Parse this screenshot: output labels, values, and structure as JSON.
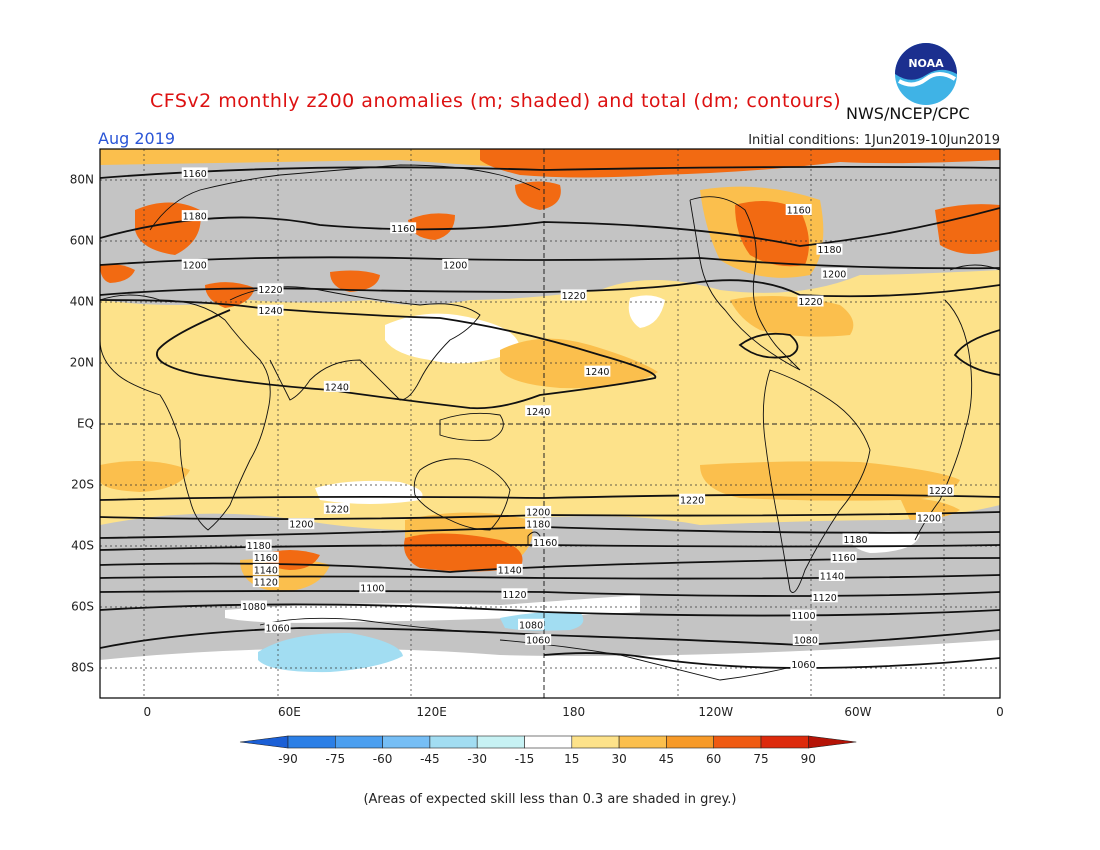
{
  "header": {
    "title": "CFSv2 monthly z200 anomalies (m; shaded) and total (dm; contours)",
    "month": "Aug 2019",
    "initial_conditions": "Initial conditions: 1Jun2019-10Jun2019",
    "agency": "NWS/NCEP/CPC",
    "logo_text": "NOAA"
  },
  "map": {
    "lat_labels": [
      "80N",
      "60N",
      "40N",
      "20N",
      "EQ",
      "20S",
      "40S",
      "60S",
      "80S"
    ],
    "lon_labels": [
      "0",
      "60E",
      "120E",
      "180",
      "120W",
      "60W",
      "0"
    ],
    "contour_labels": [
      {
        "text": "1160",
        "lon": 20,
        "lat": 82
      },
      {
        "text": "1180",
        "lon": 20,
        "lat": 68
      },
      {
        "text": "1160",
        "lon": 108,
        "lat": 64
      },
      {
        "text": "1160",
        "lon": 275,
        "lat": 70
      },
      {
        "text": "1180",
        "lon": 288,
        "lat": 57
      },
      {
        "text": "1200",
        "lon": 20,
        "lat": 52
      },
      {
        "text": "1200",
        "lon": 130,
        "lat": 52
      },
      {
        "text": "1200",
        "lon": 290,
        "lat": 49
      },
      {
        "text": "1220",
        "lon": 52,
        "lat": 44
      },
      {
        "text": "1220",
        "lon": 180,
        "lat": 42
      },
      {
        "text": "1220",
        "lon": 280,
        "lat": 40
      },
      {
        "text": "1240",
        "lon": 52,
        "lat": 37
      },
      {
        "text": "1240",
        "lon": 190,
        "lat": 17
      },
      {
        "text": "1240",
        "lon": 80,
        "lat": 12
      },
      {
        "text": "1240",
        "lon": 165,
        "lat": 4
      },
      {
        "text": "1220",
        "lon": 230,
        "lat": -25
      },
      {
        "text": "1220",
        "lon": 335,
        "lat": -22
      },
      {
        "text": "1220",
        "lon": 80,
        "lat": -28
      },
      {
        "text": "1200",
        "lon": 165,
        "lat": -29
      },
      {
        "text": "1200",
        "lon": 330,
        "lat": -31
      },
      {
        "text": "1200",
        "lon": 65,
        "lat": -33
      },
      {
        "text": "1180",
        "lon": 165,
        "lat": -33
      },
      {
        "text": "1180",
        "lon": 299,
        "lat": -38
      },
      {
        "text": "1180",
        "lon": 47,
        "lat": -40
      },
      {
        "text": "1160",
        "lon": 168,
        "lat": -39
      },
      {
        "text": "1160",
        "lon": 294,
        "lat": -44
      },
      {
        "text": "1160",
        "lon": 50,
        "lat": -44
      },
      {
        "text": "1140",
        "lon": 50,
        "lat": -48
      },
      {
        "text": "1140",
        "lon": 153,
        "lat": -48
      },
      {
        "text": "1140",
        "lon": 289,
        "lat": -50
      },
      {
        "text": "1120",
        "lon": 50,
        "lat": -52
      },
      {
        "text": "1120",
        "lon": 155,
        "lat": -56
      },
      {
        "text": "1120",
        "lon": 286,
        "lat": -57
      },
      {
        "text": "1100",
        "lon": 95,
        "lat": -54
      },
      {
        "text": "1100",
        "lon": 277,
        "lat": -63
      },
      {
        "text": "1080",
        "lon": 45,
        "lat": -60
      },
      {
        "text": "1080",
        "lon": 162,
        "lat": -66
      },
      {
        "text": "1080",
        "lon": 278,
        "lat": -71
      },
      {
        "text": "1060",
        "lon": 55,
        "lat": -67
      },
      {
        "text": "1060",
        "lon": 165,
        "lat": -71
      },
      {
        "text": "1060",
        "lon": 277,
        "lat": -79
      }
    ]
  },
  "colorbar": {
    "ticks": [
      "-90",
      "-75",
      "-60",
      "-45",
      "-30",
      "-15",
      "15",
      "30",
      "45",
      "60",
      "75",
      "90"
    ],
    "colors": [
      "#1a5fd6",
      "#2b7fe6",
      "#4b9ff0",
      "#76bef5",
      "#a2ddf2",
      "#c7f2f4",
      "#ffffff",
      "#fde28a",
      "#fbbf4d",
      "#f79a28",
      "#ef5a12",
      "#dd2a0c",
      "#b51306"
    ],
    "note": "(Areas of expected skill less than 0.3 are shaded in grey.)"
  },
  "colors": {
    "title": "#dd1111",
    "month": "#2a55d6",
    "low_skill_grey": "#c4c4c4"
  }
}
